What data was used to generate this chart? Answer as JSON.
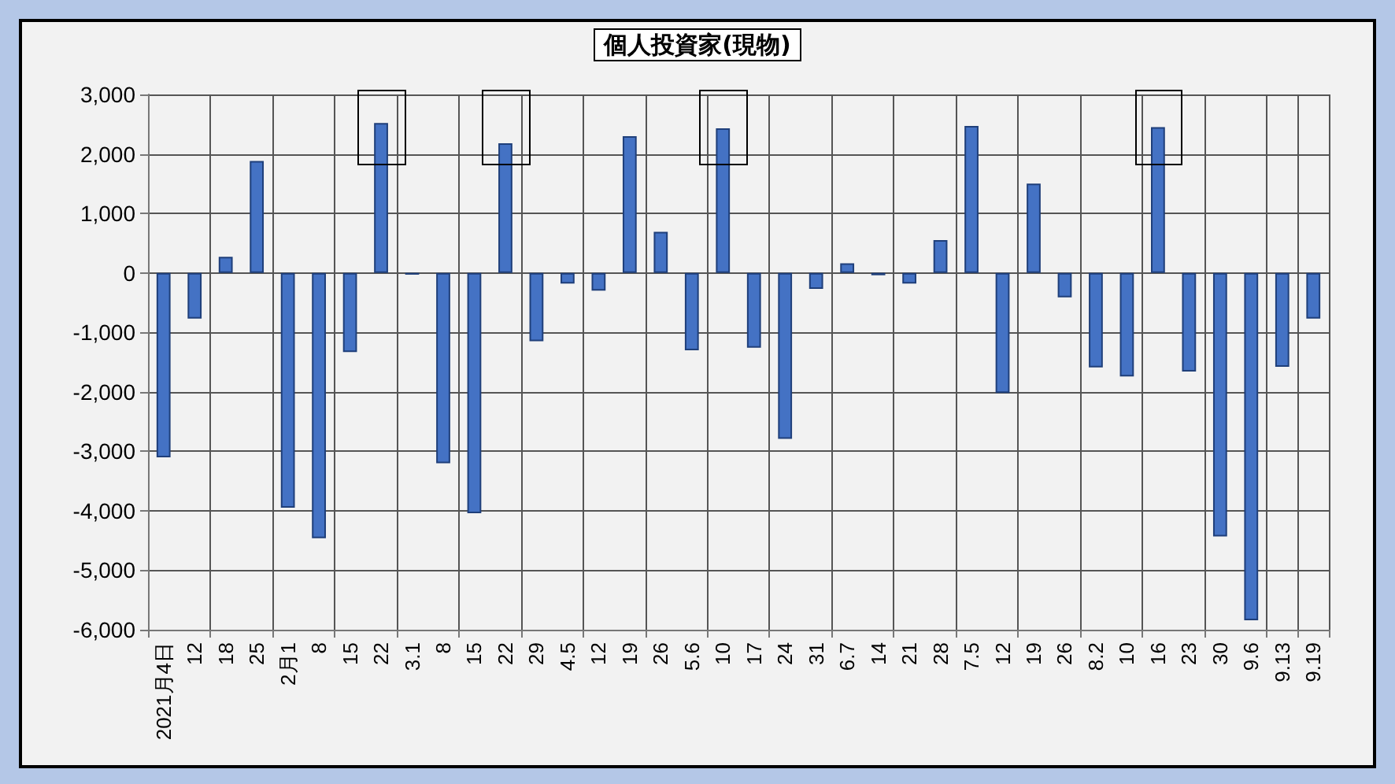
{
  "chart_data": {
    "type": "bar",
    "title": "個人投資家(現物)",
    "categories": [
      "2021月4日",
      "12",
      "18",
      "25",
      "2月1",
      "8",
      "15",
      "22",
      "3.1",
      "8",
      "15",
      "22",
      "29",
      "4.5",
      "12",
      "19",
      "26",
      "5.6",
      "10",
      "17",
      "24",
      "31",
      "6.7",
      "14",
      "21",
      "28",
      "7.5",
      "12",
      "19",
      "26",
      "8.2",
      "10",
      "16",
      "23",
      "30",
      "9.6",
      "9.13",
      "9.19"
    ],
    "values": [
      -3100,
      -770,
      270,
      1880,
      -3950,
      -4460,
      -1330,
      2520,
      -30,
      -3200,
      -4040,
      2180,
      -1150,
      -180,
      -300,
      2300,
      690,
      -1300,
      2430,
      -1260,
      -2790,
      -270,
      160,
      -40,
      -180,
      550,
      2470,
      -2020,
      1500,
      -410,
      -1590,
      -1740,
      2450,
      -1660,
      -4430,
      -5840,
      -1580,
      -770
    ],
    "color": "#4472c4",
    "ylim": [
      -6000,
      3000
    ],
    "yticks": [
      {
        "value": -6000,
        "label": "-6,000"
      },
      {
        "value": -5000,
        "label": "-5,000"
      },
      {
        "value": -4000,
        "label": "-4,000"
      },
      {
        "value": -3000,
        "label": "-3,000"
      },
      {
        "value": -2000,
        "label": "-2,000"
      },
      {
        "value": -1000,
        "label": "-1,000"
      },
      0,
      {
        "value": 1000,
        "label": "1,000"
      },
      {
        "value": 2000,
        "label": "2,000"
      },
      {
        "value": 3000,
        "label": "3,000"
      }
    ],
    "grid": true
  }
}
